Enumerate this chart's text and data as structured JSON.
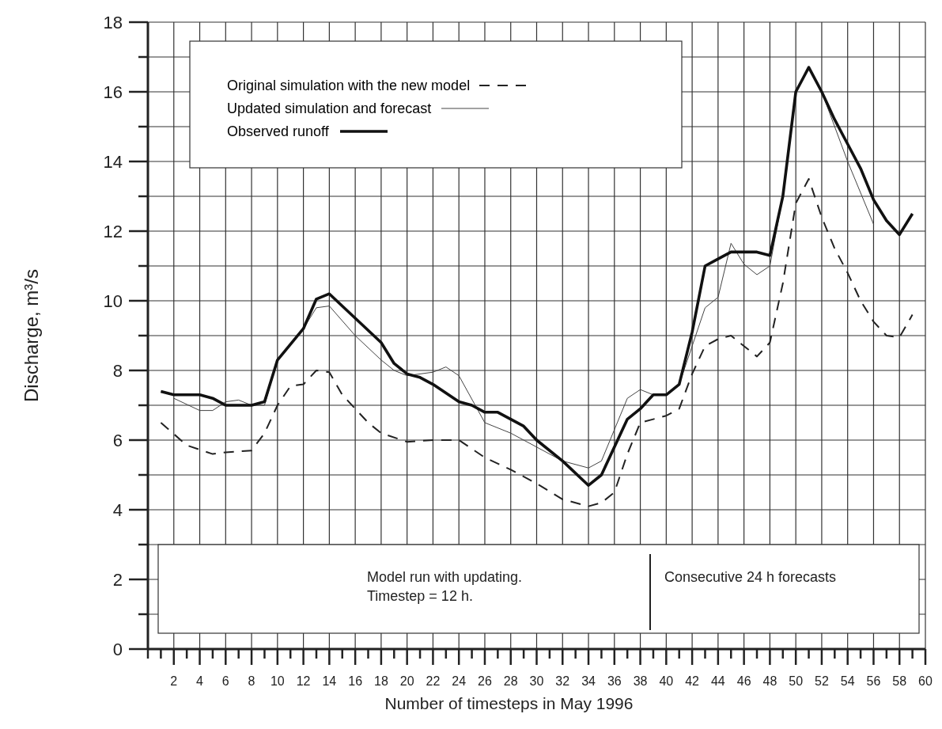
{
  "chart_data": {
    "type": "line",
    "xlabel": "Number of timesteps in May 1996",
    "ylabel": "Discharge, m³/s",
    "xlim": [
      0,
      60
    ],
    "ylim": [
      0,
      18
    ],
    "xticks": [
      {
        "value": 0,
        "label": null
      },
      {
        "value": 1,
        "label": null
      },
      2,
      {
        "value": 3,
        "label": null
      },
      4,
      {
        "value": 5,
        "label": null
      },
      6,
      {
        "value": 7,
        "label": null
      },
      8,
      {
        "value": 9,
        "label": null
      },
      10,
      {
        "value": 11,
        "label": null
      },
      12,
      {
        "value": 13,
        "label": null
      },
      14,
      {
        "value": 15,
        "label": null
      },
      16,
      {
        "value": 17,
        "label": null
      },
      18,
      {
        "value": 19,
        "label": null
      },
      20,
      {
        "value": 21,
        "label": null
      },
      22,
      {
        "value": 23,
        "label": null
      },
      24,
      {
        "value": 25,
        "label": null
      },
      26,
      {
        "value": 27,
        "label": null
      },
      28,
      {
        "value": 29,
        "label": null
      },
      30,
      {
        "value": 31,
        "label": null
      },
      32,
      {
        "value": 33,
        "label": null
      },
      34,
      {
        "value": 35,
        "label": null
      },
      36,
      {
        "value": 37,
        "label": null
      },
      38,
      {
        "value": 39,
        "label": null
      },
      40,
      {
        "value": 41,
        "label": null
      },
      42,
      {
        "value": 43,
        "label": null
      },
      44,
      {
        "value": 45,
        "label": null
      },
      46,
      {
        "value": 47,
        "label": null
      },
      48,
      {
        "value": 49,
        "label": null
      },
      50,
      {
        "value": 51,
        "label": null
      },
      52,
      {
        "value": 53,
        "label": null
      },
      54,
      {
        "value": 55,
        "label": null
      },
      56,
      {
        "value": 57,
        "label": null
      },
      58,
      {
        "value": 59,
        "label": null
      },
      60
    ],
    "yticks": [
      0,
      {
        "value": 1,
        "label": null
      },
      2,
      {
        "value": 3,
        "label": null
      },
      4,
      {
        "value": 5,
        "label": null
      },
      6,
      {
        "value": 7,
        "label": null
      },
      8,
      {
        "value": 9,
        "label": null
      },
      10,
      {
        "value": 11,
        "label": null
      },
      12,
      {
        "value": 13,
        "label": null
      },
      14,
      {
        "value": 15,
        "label": null
      },
      16,
      {
        "value": 17,
        "label": null
      },
      18
    ],
    "grid": true,
    "legend": "top",
    "marker": "none",
    "series": [
      {
        "name": "Original simulation with the new model",
        "color": "#222222",
        "line_style": "dashed",
        "x": [
          1,
          3,
          5,
          6,
          8,
          9,
          10,
          11,
          12,
          13,
          14,
          15,
          17,
          18,
          20,
          22,
          24,
          26,
          28,
          30,
          32,
          34,
          35,
          36,
          37,
          38,
          39,
          40,
          41,
          42,
          43,
          44,
          45,
          46,
          47,
          48,
          49,
          50,
          51,
          52,
          53,
          54,
          55,
          56,
          57,
          58,
          59
        ],
        "values": [
          6.5,
          5.85,
          5.6,
          5.65,
          5.7,
          6.2,
          7.0,
          7.55,
          7.6,
          8.0,
          7.95,
          7.3,
          6.5,
          6.2,
          5.95,
          6.0,
          6.0,
          5.5,
          5.15,
          4.75,
          4.3,
          4.1,
          4.2,
          4.5,
          5.6,
          6.5,
          6.6,
          6.7,
          6.9,
          7.9,
          8.7,
          8.9,
          9.0,
          8.7,
          8.4,
          8.8,
          10.5,
          12.8,
          13.5,
          12.4,
          11.5,
          10.8,
          10.0,
          9.4,
          9.0,
          8.95,
          9.6
        ]
      },
      {
        "name": "Updated simulation and forecast",
        "color": "#444444",
        "line_style": "solid",
        "x": [
          2,
          4,
          5,
          6,
          7,
          8,
          9,
          10,
          12,
          13,
          14,
          16,
          18,
          19,
          20,
          22,
          23,
          24,
          26,
          28,
          30,
          32,
          34,
          35,
          37,
          38,
          39,
          40,
          41,
          42,
          43,
          44,
          45,
          46,
          47,
          48,
          49,
          50,
          51,
          52,
          54,
          56
        ],
        "values": [
          7.2,
          6.85,
          6.85,
          7.1,
          7.15,
          7.0,
          7.0,
          8.3,
          9.2,
          9.8,
          9.85,
          9.0,
          8.3,
          8.0,
          7.85,
          7.95,
          8.1,
          7.85,
          6.5,
          6.2,
          5.8,
          5.4,
          5.2,
          5.4,
          7.2,
          7.45,
          7.3,
          7.3,
          7.6,
          8.7,
          9.8,
          10.1,
          11.65,
          11.05,
          10.75,
          11.0,
          13.0,
          16.0,
          16.7,
          16.0,
          14.0,
          12.2
        ]
      },
      {
        "name": "Observed runoff",
        "color": "#111111",
        "line_style": "solid",
        "x": [
          1,
          2,
          4,
          5,
          6,
          8,
          9,
          10,
          12,
          13,
          14,
          16,
          18,
          19,
          20,
          21,
          22,
          24,
          25,
          26,
          27,
          28,
          29,
          30,
          32,
          34,
          35,
          37,
          38,
          39,
          40,
          41,
          42,
          43,
          44,
          45,
          46,
          47,
          48,
          49,
          50,
          51,
          52,
          53,
          54,
          55,
          56,
          57,
          58,
          59
        ],
        "values": [
          7.4,
          7.3,
          7.3,
          7.2,
          7.0,
          7.0,
          7.1,
          8.3,
          9.2,
          10.05,
          10.2,
          9.5,
          8.8,
          8.2,
          7.9,
          7.8,
          7.6,
          7.1,
          7.0,
          6.8,
          6.8,
          6.6,
          6.4,
          6.0,
          5.4,
          4.7,
          5.0,
          6.6,
          6.9,
          7.3,
          7.3,
          7.6,
          9.1,
          11.0,
          11.2,
          11.4,
          11.4,
          11.4,
          11.3,
          13.0,
          16.0,
          16.7,
          16.0,
          15.2,
          14.5,
          13.8,
          12.9,
          12.3,
          11.9,
          12.5
        ]
      }
    ],
    "annotations": [
      "Model run with updating.\nTimestep = 12 h.",
      "Consecutive 24 h forecasts"
    ]
  }
}
